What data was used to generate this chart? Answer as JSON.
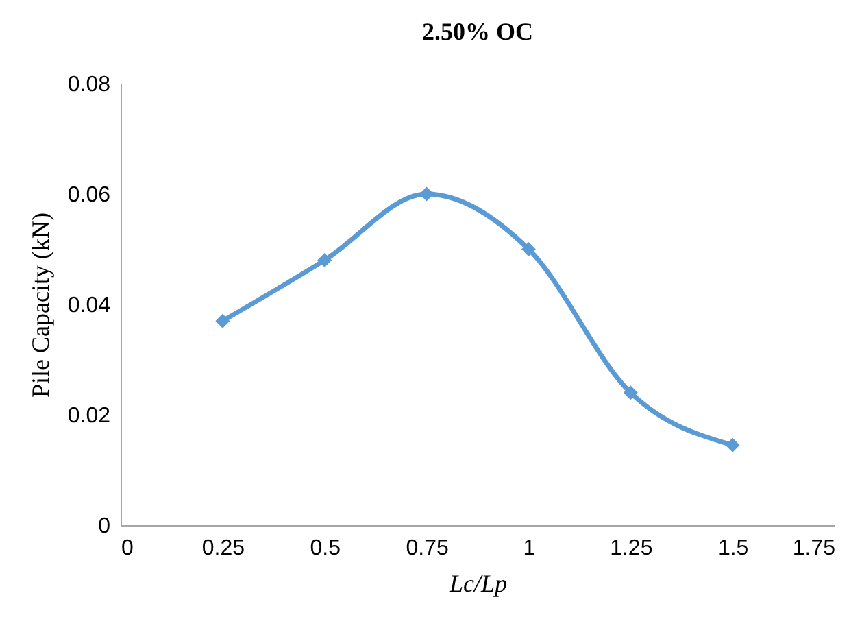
{
  "chart_data": {
    "type": "line",
    "title": "2.50% OC",
    "xlabel": "Lc/Lp",
    "ylabel": "Pile Capacity (kN)",
    "x": [
      0.25,
      0.5,
      0.75,
      1,
      1.25,
      1.5
    ],
    "series": [
      {
        "color": "#5b9bd5",
        "values": [
          0.037,
          0.048,
          0.06,
          0.05,
          0.024,
          0.0145
        ]
      }
    ],
    "xlim": [
      0,
      1.75
    ],
    "xticks": [
      0,
      0.25,
      0.5,
      0.75,
      1,
      1.25,
      1.5,
      1.75
    ],
    "ylim": [
      0,
      0.08
    ],
    "yticks": [
      0,
      0.02,
      0.04,
      0.06,
      0.08
    ],
    "grid": false,
    "legend": false,
    "marker": "diamond",
    "line_style": "solid"
  }
}
